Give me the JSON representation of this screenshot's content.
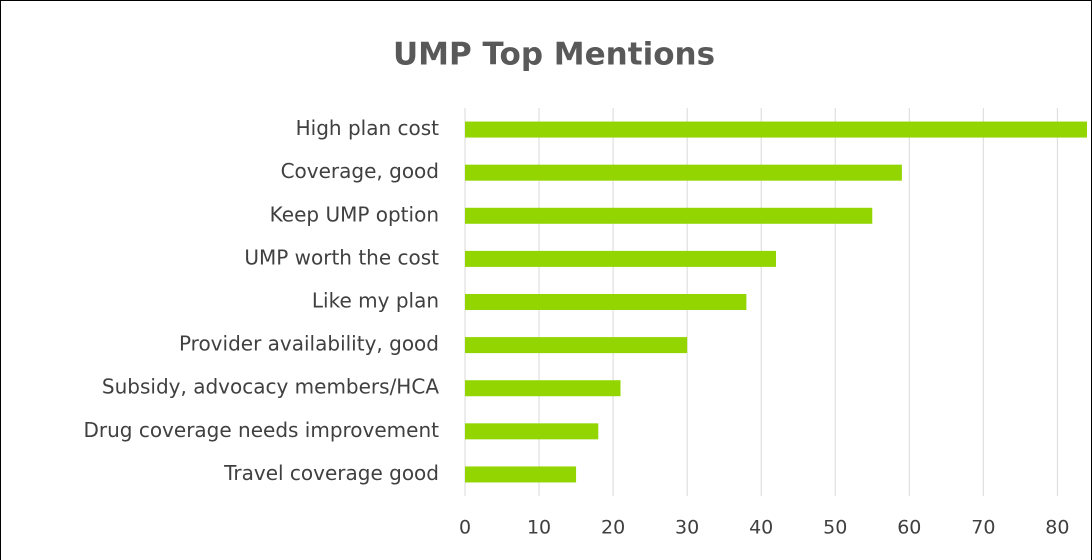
{
  "chart_data": {
    "type": "bar",
    "orientation": "horizontal",
    "title": "UMP Top Mentions",
    "categories": [
      "High plan cost",
      "Coverage, good",
      "Keep UMP option",
      "UMP worth the cost",
      "Like my plan",
      "Provider availability, good",
      "Subsidy, advocacy members/HCA",
      "Drug coverage needs improvement",
      "Travel coverage good"
    ],
    "values": [
      84,
      59,
      55,
      42,
      38,
      30,
      21,
      18,
      15
    ],
    "color": "#92d500",
    "xlim": [
      0,
      84
    ],
    "xticks": [
      0,
      10,
      20,
      30,
      40,
      50,
      60,
      70,
      80
    ],
    "grid": true
  }
}
